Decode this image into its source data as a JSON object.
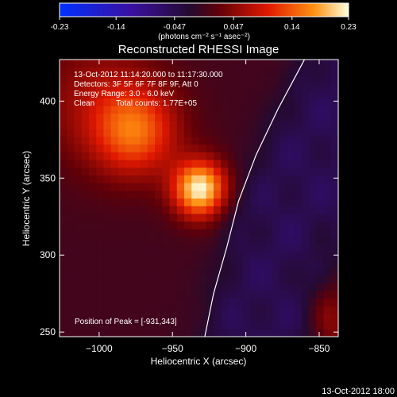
{
  "colorbar": {
    "ticks": [
      "-0.23",
      "-0.14",
      "-0.047",
      "0.047",
      "0.14",
      "0.23"
    ],
    "tick_values": [
      -0.23,
      -0.14,
      -0.047,
      0.047,
      0.14,
      0.23
    ],
    "range": [
      -0.23,
      0.23
    ],
    "units": "(photons cm⁻² s⁻¹ asec⁻²)"
  },
  "title": "Reconstructed RHESSI Image",
  "info": {
    "time_range": "13-Oct-2012 11:14:20.000 to 11:17:30.000",
    "detectors": "Detectors: 3F 5F 6F 7F 8F 9F, Att 0",
    "energy_range": "Energy Range: 3.0 - 6.0 keV",
    "method": "Clean",
    "total_counts": "Total counts: 1.77E+05"
  },
  "peak_text": "Position of Peak = [-931,343]",
  "footer_date": "13-Oct-2012 18:00",
  "chart_data": {
    "type": "heatmap",
    "title": "Reconstructed RHESSI Image",
    "xlabel": "Heliocentric X (arcsec)",
    "ylabel": "Heliocentric Y (arcsec)",
    "xlim": [
      -1027,
      -837
    ],
    "ylim": [
      247,
      427
    ],
    "xticks": [
      -1000,
      -950,
      -900,
      -850
    ],
    "yticks": [
      250,
      300,
      350,
      400
    ],
    "xtick_labels": [
      "−1000",
      "−950",
      "−900",
      "−850"
    ],
    "ytick_labels": [
      "250",
      "300",
      "350",
      "400"
    ],
    "colormap": "blue-purple-red-yellow-white",
    "peak": {
      "x": -931,
      "y": 343
    },
    "sources": [
      {
        "x": -931,
        "y": 343,
        "amp": 0.23
      },
      {
        "x": -975,
        "y": 380,
        "amp": 0.13
      },
      {
        "x": -1000,
        "y": 400,
        "amp": 0.06
      }
    ],
    "limb": {
      "points": [
        [
          -928,
          247
        ],
        [
          -922,
          275
        ],
        [
          -913,
          305
        ],
        [
          -905,
          335
        ],
        [
          -893,
          365
        ],
        [
          -878,
          395
        ],
        [
          -860,
          427
        ]
      ]
    }
  }
}
